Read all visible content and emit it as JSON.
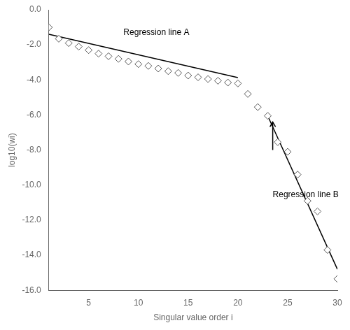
{
  "chart_data": {
    "type": "scatter",
    "xlabel": "Singular value order i",
    "ylabel": "log10(wi)",
    "xlim": [
      1,
      30
    ],
    "ylim": [
      -16.0,
      0.0
    ],
    "xticks": [
      5,
      10,
      15,
      20,
      25,
      30
    ],
    "yticks": [
      {
        "value": 0.0,
        "label": "0.0"
      },
      {
        "value": -2.0,
        "label": "-2.0"
      },
      {
        "value": -4.0,
        "label": "-4.0"
      },
      {
        "value": -6.0,
        "label": "-6.0"
      },
      {
        "value": -8.0,
        "label": "-8.0"
      },
      {
        "value": -10.0,
        "label": "-10.0"
      },
      {
        "value": -12.0,
        "label": "-12.0"
      },
      {
        "value": -14.0,
        "label": "-14.0"
      },
      {
        "value": -16.0,
        "label": "-16.0"
      }
    ],
    "grid": false,
    "series": [
      {
        "type": "scatter",
        "marker": "open diamond",
        "color": "#555555",
        "x": [
          1,
          2,
          3,
          4,
          5,
          6,
          7,
          8,
          9,
          10,
          11,
          12,
          13,
          14,
          15,
          16,
          17,
          18,
          19,
          20,
          21,
          22,
          23,
          24,
          25,
          26,
          27,
          28,
          29,
          30
        ],
        "values": [
          -1.0,
          -1.65,
          -1.9,
          -2.1,
          -2.3,
          -2.5,
          -2.65,
          -2.8,
          -2.95,
          -3.1,
          -3.2,
          -3.35,
          -3.5,
          -3.6,
          -3.75,
          -3.85,
          -3.95,
          -4.05,
          -4.15,
          -4.2,
          -4.8,
          -5.55,
          -6.05,
          -7.55,
          -8.1,
          -9.4,
          -10.9,
          -11.5,
          -13.7,
          -15.35
        ]
      },
      {
        "type": "line",
        "line_style": "solid",
        "color": "#000000",
        "x": [
          1,
          20
        ],
        "values": [
          -1.4,
          -3.87
        ]
      },
      {
        "type": "line",
        "line_style": "solid",
        "color": "#000000",
        "x": [
          23,
          30
        ],
        "values": [
          -6.05,
          -14.8
        ]
      }
    ],
    "annotations": [
      {
        "text": "Regression line A",
        "x": 8.5,
        "y": -1.55
      },
      {
        "text": "Regression line B",
        "x": 23.5,
        "y": -10.3
      }
    ],
    "arrows": [
      {
        "from": [
          23.5,
          -8.0
        ],
        "to": [
          23.5,
          -6.4
        ]
      }
    ]
  }
}
